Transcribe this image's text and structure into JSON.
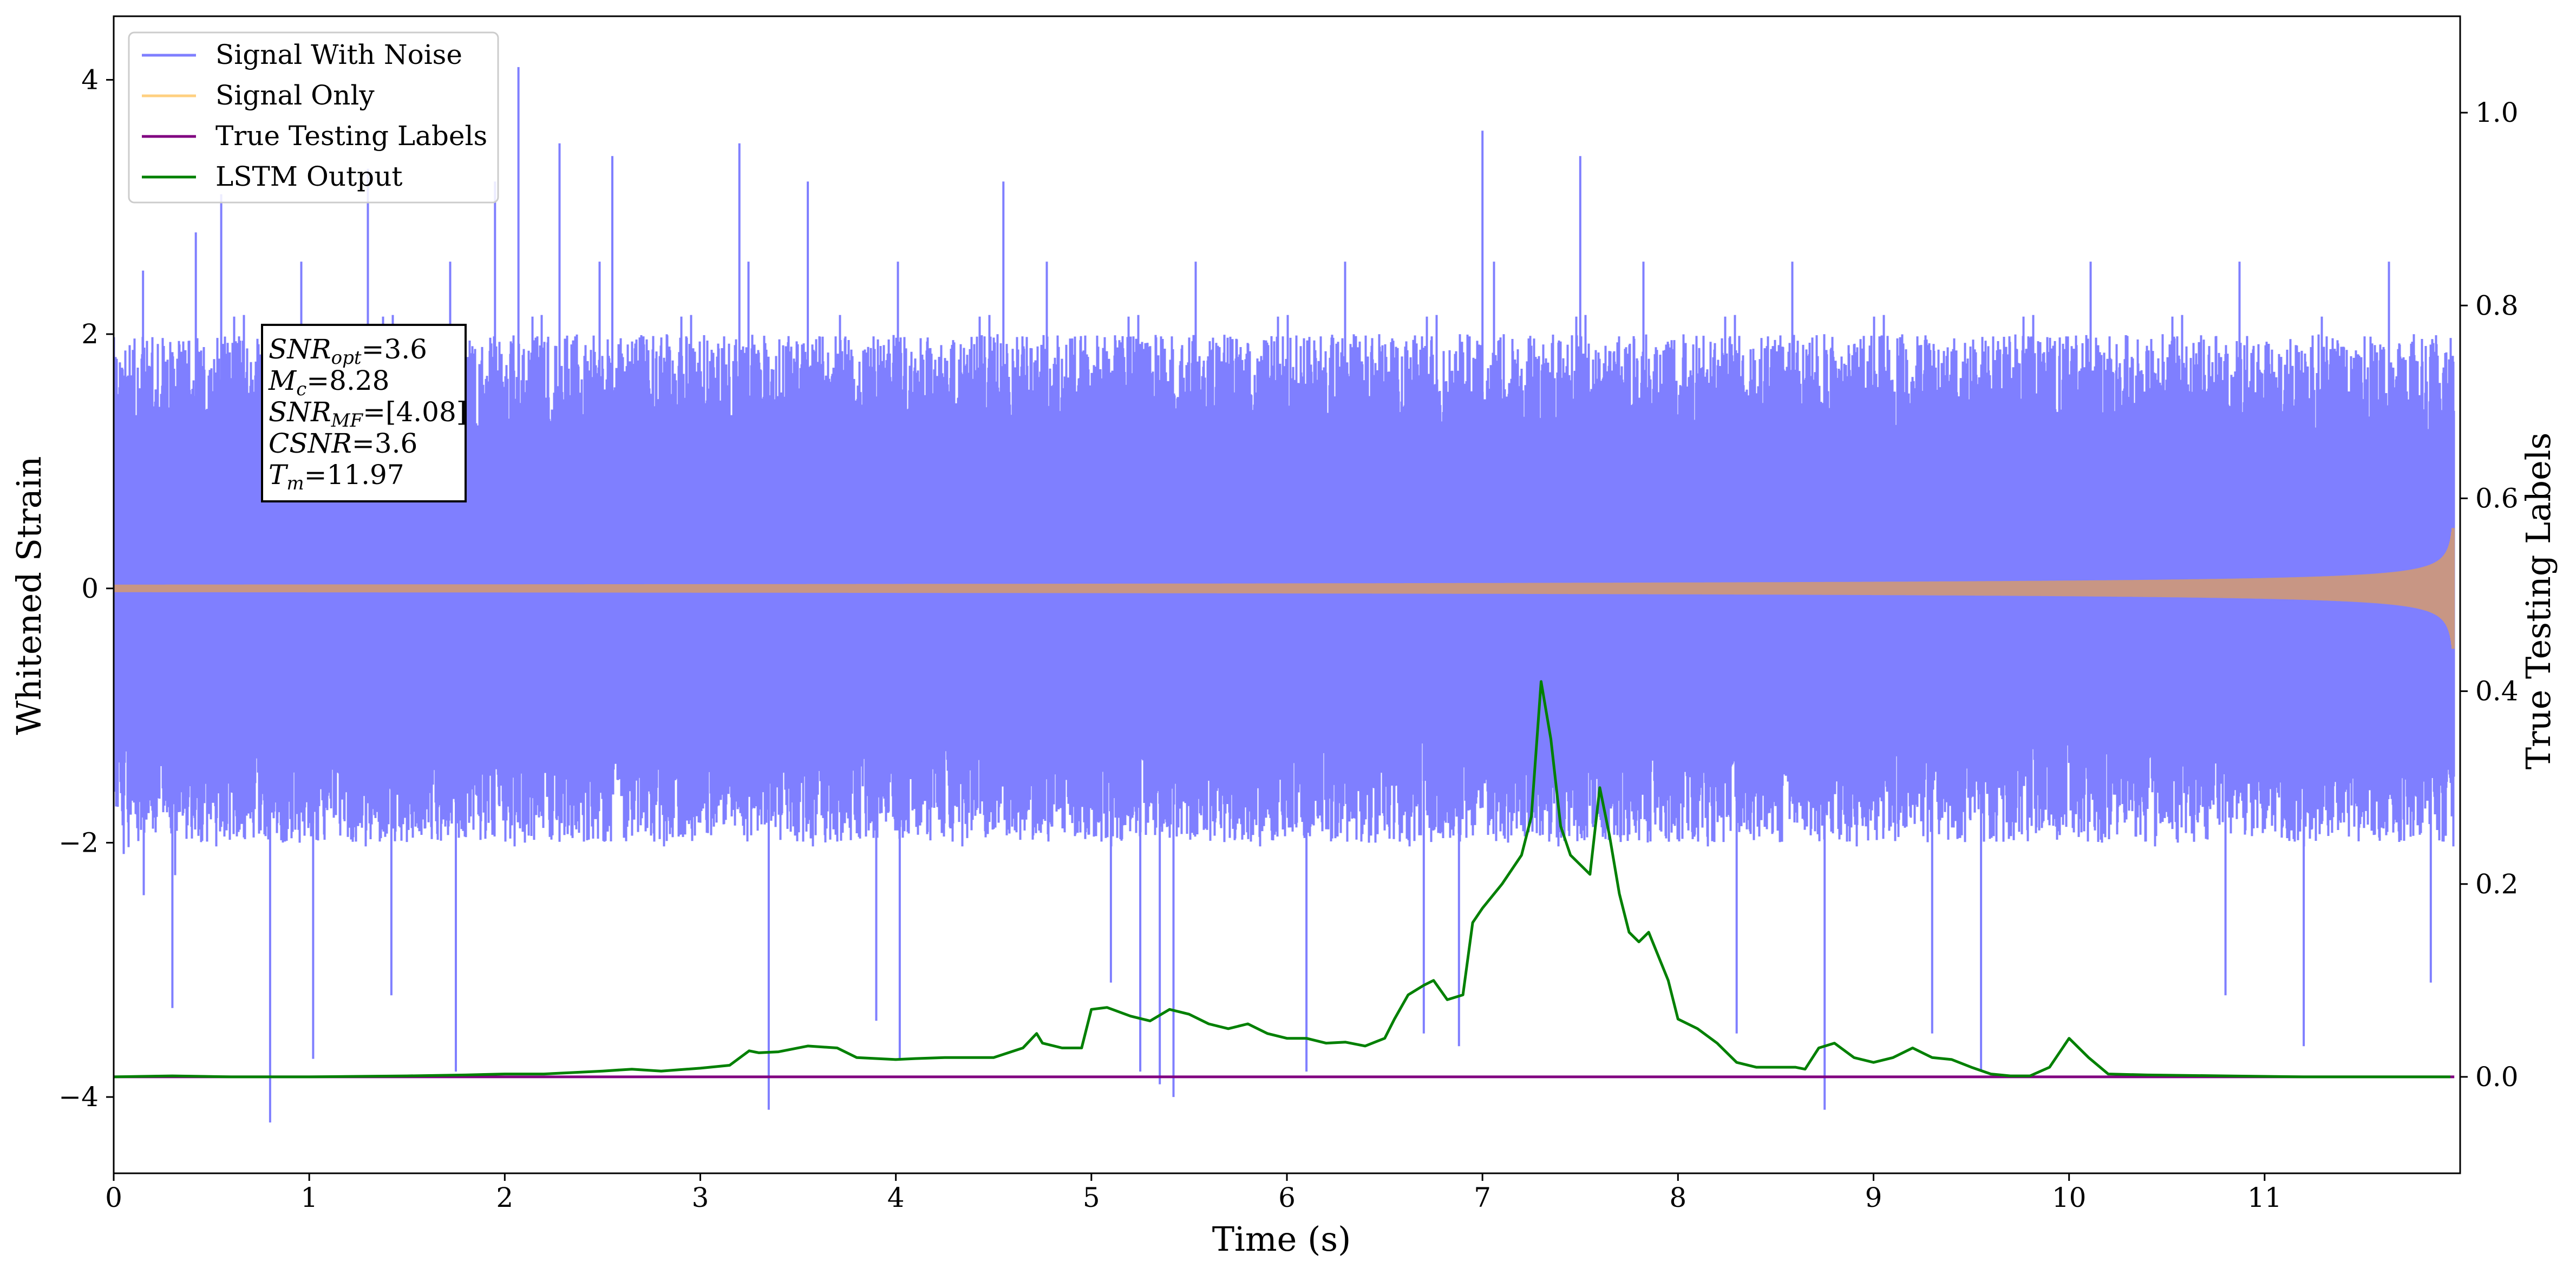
{
  "chart_data": {
    "type": "line",
    "xlabel": "Time (s)",
    "ylabel": "Whitened Strain",
    "ylabel_right": "True Testing Labels",
    "xlim": [
      0,
      12.0
    ],
    "ylim": [
      -4.6,
      4.5
    ],
    "ylim_right": [
      -0.1,
      1.1
    ],
    "x_ticks": [
      0,
      1,
      2,
      3,
      4,
      5,
      6,
      7,
      8,
      9,
      10,
      11
    ],
    "y_ticks": [
      -4,
      -2,
      0,
      2,
      4
    ],
    "y_tick_labels": [
      "−4",
      "−2",
      "0",
      "2",
      "4"
    ],
    "y_right_ticks": [
      0.0,
      0.2,
      0.4,
      0.6,
      0.8,
      1.0
    ],
    "y_right_tick_labels": [
      "0.0",
      "0.2",
      "0.4",
      "0.6",
      "0.8",
      "1.0"
    ],
    "legend": {
      "placement": "top-left",
      "entries": [
        "Signal With Noise",
        "Signal Only",
        "True Testing Labels",
        "LSTM Output"
      ]
    },
    "colors": {
      "Signal With Noise": "#7f7fff",
      "Signal Only": "#ffd080",
      "Signal Overlap": "#c89684",
      "True Testing Labels": "#800080",
      "LSTM Output": "#008000"
    },
    "annotation": {
      "lines": [
        {
          "base": "SNR",
          "sub": "opt",
          "rest": "=3.6"
        },
        {
          "base": "M",
          "sub": "c",
          "rest": "=8.28"
        },
        {
          "base": "SNR",
          "sub": "MF",
          "rest": "=[4.08]"
        },
        {
          "base": "CSNR",
          "sub": "",
          "rest": "=3.6"
        },
        {
          "base": "T",
          "sub": "m",
          "rest": "=11.97"
        }
      ]
    },
    "series": [
      {
        "name": "Signal With Noise",
        "axis": "left",
        "kind": "noise",
        "std": 0.6,
        "envelope_min": [
          -2.0,
          2.0
        ],
        "sample_peaks": {
          "x": [
            0.15,
            0.3,
            0.42,
            0.55,
            0.8,
            1.02,
            1.3,
            1.42,
            1.75,
            1.95,
            2.07,
            2.28,
            2.55,
            3.2,
            3.35,
            3.55,
            3.9,
            4.02,
            4.55,
            5.1,
            5.25,
            5.35,
            5.42,
            6.1,
            6.7,
            6.88,
            7.0,
            7.5,
            8.3,
            8.75,
            9.3,
            9.55,
            10.8,
            11.2,
            11.85
          ],
          "y": [
            2.5,
            -3.3,
            2.8,
            3.1,
            -4.2,
            -3.7,
            3.3,
            -3.2,
            -3.8,
            3.2,
            4.1,
            3.5,
            3.4,
            3.5,
            -4.1,
            3.2,
            -3.4,
            -3.7,
            3.2,
            -3.1,
            -3.8,
            -3.9,
            -4.0,
            -3.8,
            -3.5,
            -3.6,
            3.6,
            3.4,
            -3.5,
            -4.1,
            -3.5,
            -3.8,
            -3.2,
            -3.6,
            -3.1
          ]
        }
      },
      {
        "name": "Signal Only",
        "axis": "left",
        "kind": "chirp",
        "amplitude_start": 0.03,
        "amplitude_end": 0.6,
        "merger_time": 11.97
      },
      {
        "name": "True Testing Labels",
        "axis": "right",
        "x": [
          0,
          11.97
        ],
        "y": [
          0.0,
          0.0
        ]
      },
      {
        "name": "LSTM Output",
        "axis": "right",
        "x": [
          0,
          0.3,
          0.6,
          1.0,
          1.5,
          1.8,
          2.0,
          2.1,
          2.2,
          2.5,
          2.65,
          2.8,
          3.0,
          3.15,
          3.25,
          3.3,
          3.4,
          3.55,
          3.7,
          3.8,
          4.0,
          4.1,
          4.25,
          4.5,
          4.65,
          4.72,
          4.75,
          4.85,
          4.95,
          5.0,
          5.08,
          5.2,
          5.3,
          5.4,
          5.5,
          5.6,
          5.7,
          5.8,
          5.9,
          6.0,
          6.1,
          6.2,
          6.3,
          6.4,
          6.5,
          6.55,
          6.62,
          6.7,
          6.75,
          6.82,
          6.9,
          6.95,
          7.0,
          7.1,
          7.2,
          7.25,
          7.3,
          7.35,
          7.4,
          7.45,
          7.5,
          7.55,
          7.6,
          7.65,
          7.7,
          7.75,
          7.8,
          7.85,
          7.95,
          8.0,
          8.1,
          8.2,
          8.3,
          8.4,
          8.6,
          8.65,
          8.72,
          8.8,
          8.9,
          9.0,
          9.1,
          9.2,
          9.3,
          9.4,
          9.5,
          9.6,
          9.7,
          9.8,
          9.9,
          10.0,
          10.1,
          10.2,
          10.4,
          10.8,
          11.2,
          11.6,
          11.95
        ],
        "y": [
          0.0,
          0.001,
          0.0,
          0.0,
          0.001,
          0.002,
          0.003,
          0.003,
          0.003,
          0.006,
          0.008,
          0.006,
          0.009,
          0.012,
          0.027,
          0.025,
          0.026,
          0.032,
          0.03,
          0.02,
          0.018,
          0.019,
          0.02,
          0.02,
          0.03,
          0.045,
          0.035,
          0.03,
          0.03,
          0.07,
          0.072,
          0.063,
          0.058,
          0.07,
          0.065,
          0.055,
          0.05,
          0.055,
          0.045,
          0.04,
          0.04,
          0.035,
          0.036,
          0.032,
          0.04,
          0.06,
          0.085,
          0.095,
          0.1,
          0.08,
          0.085,
          0.16,
          0.175,
          0.2,
          0.23,
          0.27,
          0.41,
          0.35,
          0.26,
          0.23,
          0.22,
          0.21,
          0.3,
          0.25,
          0.19,
          0.15,
          0.14,
          0.15,
          0.1,
          0.06,
          0.05,
          0.035,
          0.015,
          0.01,
          0.01,
          0.008,
          0.03,
          0.035,
          0.02,
          0.015,
          0.02,
          0.03,
          0.02,
          0.018,
          0.01,
          0.003,
          0.001,
          0.001,
          0.01,
          0.04,
          0.02,
          0.003,
          0.002,
          0.001,
          0.0,
          0.0,
          0.0
        ]
      }
    ]
  }
}
